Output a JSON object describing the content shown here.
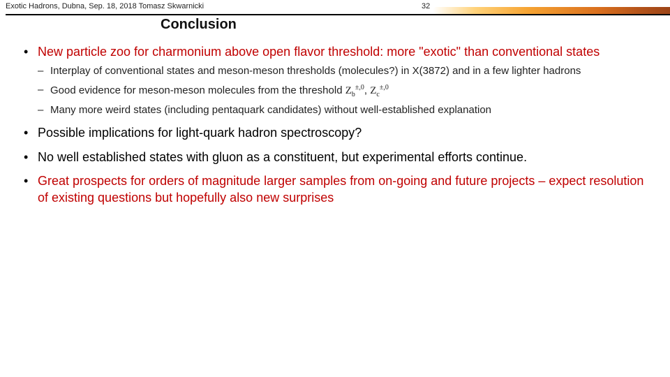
{
  "header": {
    "left": "Exotic Hadrons, Dubna, Sep. 18, 2018 Tomasz Skwarnicki",
    "page": "32"
  },
  "title": "Conclusion",
  "bullets": {
    "b1": "New particle zoo for charmonium above open flavor threshold: more \"exotic\" than conventional states",
    "b1_sub1": "Interplay of conventional states and meson-meson thresholds (molecules?) in X(3872) and in a few lighter hadrons",
    "b1_sub2_pre": "Good evidence for meson-meson molecules from the threshold ",
    "b1_sub2_sym1_base": "Z",
    "b1_sub2_sym1_sub": "b",
    "b1_sub2_sym1_sup": "±,0",
    "b1_sub2_sep": ", ",
    "b1_sub2_sym2_base": "Z",
    "b1_sub2_sym2_sub": "c",
    "b1_sub2_sym2_sup": "±,0",
    "b1_sub3": "Many more weird states (including pentaquark candidates) without well-established explanation",
    "b2": "Possible implications for light-quark hadron spectroscopy?",
    "b3": "No well established states with gluon as a constituent, but experimental efforts continue.",
    "b4": "Great prospects for orders of magnitude larger samples from on-going and future projects – expect resolution of existing questions but hopefully also new surprises"
  },
  "colors": {
    "accent_red": "#c00000",
    "grad_start": "#ffd27a",
    "grad_end": "#9c4417",
    "text": "#000000"
  }
}
